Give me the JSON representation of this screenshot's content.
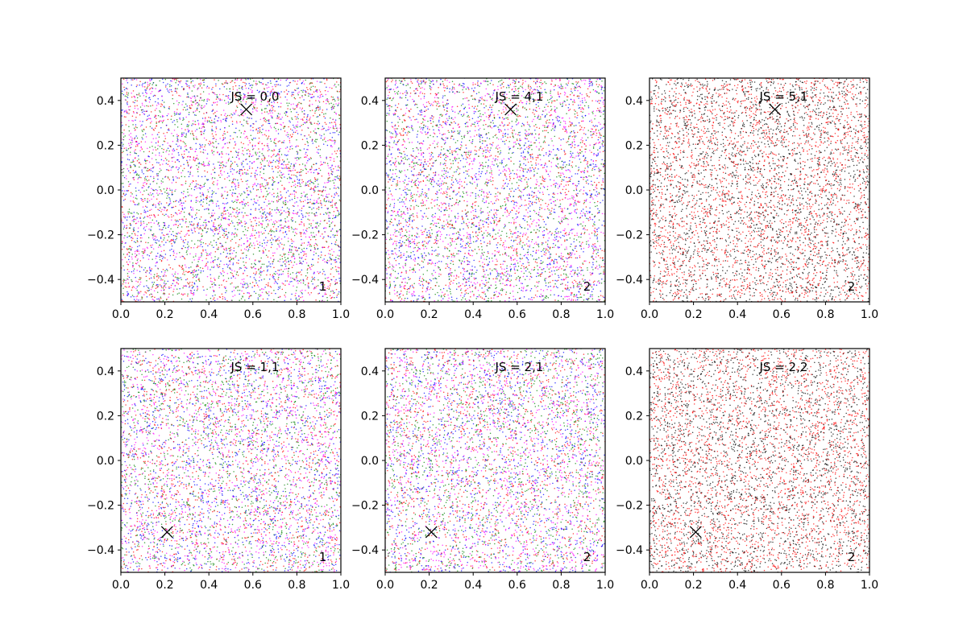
{
  "chart_data": [
    {
      "type": "scatter",
      "annotation": "JS = 0,0",
      "corner_label": "1",
      "xlim": [
        0.0,
        1.0
      ],
      "ylim": [
        -0.5,
        0.5
      ],
      "xticks": [
        "0.0",
        "0.2",
        "0.4",
        "0.6",
        "0.8",
        "1.0"
      ],
      "yticks": [
        "-0.4",
        "-0.2",
        "0.0",
        "0.2",
        "0.4"
      ],
      "series_colors": [
        "#0000ff",
        "#ff0000",
        "#008000",
        "#ff00ff"
      ],
      "marker": {
        "x": 0.57,
        "y": 0.36
      },
      "point_count": 5000
    },
    {
      "type": "scatter",
      "annotation": "JS = 4,1",
      "corner_label": "2",
      "xlim": [
        0.0,
        1.0
      ],
      "ylim": [
        -0.5,
        0.5
      ],
      "xticks": [
        "0.0",
        "0.2",
        "0.4",
        "0.6",
        "0.8",
        "1.0"
      ],
      "yticks": [
        "-0.4",
        "-0.2",
        "0.0",
        "0.2",
        "0.4"
      ],
      "series_colors": [
        "#0000ff",
        "#ff0000",
        "#008000",
        "#ff00ff"
      ],
      "marker": {
        "x": 0.57,
        "y": 0.36
      },
      "point_count": 5000
    },
    {
      "type": "scatter",
      "annotation": "JS = 5,1",
      "corner_label": "2",
      "xlim": [
        0.0,
        1.0
      ],
      "ylim": [
        -0.5,
        0.5
      ],
      "xticks": [
        "0.0",
        "0.2",
        "0.4",
        "0.6",
        "0.8",
        "1.0"
      ],
      "yticks": [
        "-0.4",
        "-0.2",
        "0.0",
        "0.2",
        "0.4"
      ],
      "series_colors": [
        "#ff0000",
        "#000000"
      ],
      "marker": {
        "x": 0.57,
        "y": 0.36
      },
      "point_count": 5000
    },
    {
      "type": "scatter",
      "annotation": "JS = 1,1",
      "corner_label": "1",
      "xlim": [
        0.0,
        1.0
      ],
      "ylim": [
        -0.5,
        0.5
      ],
      "xticks": [
        "0.0",
        "0.2",
        "0.4",
        "0.6",
        "0.8",
        "1.0"
      ],
      "yticks": [
        "-0.4",
        "-0.2",
        "0.0",
        "0.2",
        "0.4"
      ],
      "series_colors": [
        "#0000ff",
        "#ff0000",
        "#008000",
        "#ff00ff"
      ],
      "marker": {
        "x": 0.21,
        "y": -0.32
      },
      "point_count": 5000
    },
    {
      "type": "scatter",
      "annotation": "JS = 2,1",
      "corner_label": "2",
      "xlim": [
        0.0,
        1.0
      ],
      "ylim": [
        -0.5,
        0.5
      ],
      "xticks": [
        "0.0",
        "0.2",
        "0.4",
        "0.6",
        "0.8",
        "1.0"
      ],
      "yticks": [
        "-0.4",
        "-0.2",
        "0.0",
        "0.2",
        "0.4"
      ],
      "series_colors": [
        "#0000ff",
        "#ff0000",
        "#008000",
        "#ff00ff"
      ],
      "marker": {
        "x": 0.21,
        "y": -0.32
      },
      "point_count": 5000
    },
    {
      "type": "scatter",
      "annotation": "JS = 2,2",
      "corner_label": "2",
      "xlim": [
        0.0,
        1.0
      ],
      "ylim": [
        -0.5,
        0.5
      ],
      "xticks": [
        "0.0",
        "0.2",
        "0.4",
        "0.6",
        "0.8",
        "1.0"
      ],
      "yticks": [
        "-0.4",
        "-0.2",
        "0.0",
        "0.2",
        "0.4"
      ],
      "series_colors": [
        "#ff0000",
        "#000000"
      ],
      "marker": {
        "x": 0.21,
        "y": -0.32
      },
      "point_count": 5000
    }
  ]
}
